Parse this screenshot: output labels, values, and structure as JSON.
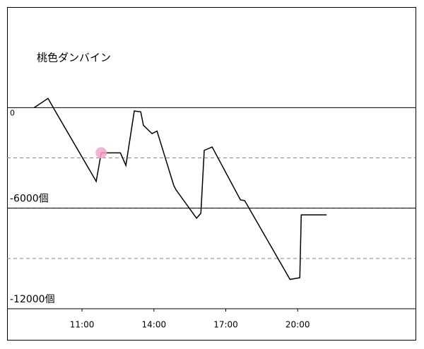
{
  "chart_data": {
    "type": "line",
    "title": "桃色ダンバイン",
    "x": [
      9.0,
      9.58,
      9.88,
      11.59,
      11.8,
      12.6,
      12.83,
      13.18,
      13.45,
      13.56,
      13.92,
      14.13,
      14.83,
      14.92,
      15.78,
      15.96,
      16.1,
      16.43,
      17.61,
      17.79,
      19.68,
      20.09,
      20.15,
      21.21
    ],
    "series": [
      {
        "color": "#000000",
        "values": [
          0,
          550,
          -200,
          -4400,
          -2700,
          -2700,
          -3450,
          -200,
          -250,
          -1050,
          -1550,
          -1400,
          -4650,
          -4900,
          -6600,
          -6300,
          -2550,
          -2350,
          -5500,
          -5550,
          -10250,
          -10150,
          -6400,
          -6400
        ]
      }
    ],
    "marker": {
      "index": 4,
      "color": "#f3a6c8"
    },
    "xlim": [
      7.87,
      24.92
    ],
    "xticks": [
      {
        "value": 11,
        "label": "11:00"
      },
      {
        "value": 14,
        "label": "14:00"
      },
      {
        "value": 17,
        "label": "17:00"
      },
      {
        "value": 20,
        "label": "20:00"
      }
    ],
    "ylim": [
      -12000,
      6000
    ],
    "yticks": [
      0,
      {
        "value": -6000,
        "label": "-6000個"
      },
      {
        "value": -12000,
        "label": "-12000個"
      }
    ],
    "grid_lines": [
      -3000,
      -6000,
      -9000
    ]
  }
}
